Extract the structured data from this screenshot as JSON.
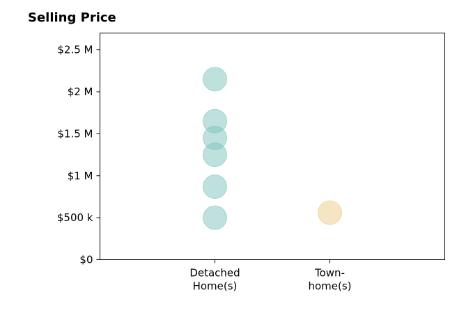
{
  "chart_data": {
    "type": "scatter",
    "title": "Selling Price",
    "categories": [
      "Detached\nHome(s)",
      "Town-\nhome(s)"
    ],
    "yticks": [
      {
        "value": 0,
        "label": "$0"
      },
      {
        "value": 500000,
        "label": "$500 k"
      },
      {
        "value": 1000000,
        "label": "$1 M"
      },
      {
        "value": 1500000,
        "label": "$1.5 M"
      },
      {
        "value": 2000000,
        "label": "$2 M"
      },
      {
        "value": 2500000,
        "label": "$2.5 M"
      }
    ],
    "ylim": [
      0,
      2700000
    ],
    "xlim": [
      -1,
      2
    ],
    "series": [
      {
        "category_index": 0,
        "color": "#7ec4bc",
        "values": [
          500000,
          870000,
          1250000,
          1450000,
          1650000,
          2150000
        ]
      },
      {
        "category_index": 1,
        "color": "#edc986",
        "values": [
          560000
        ]
      }
    ],
    "grid": false,
    "legend": "none"
  }
}
